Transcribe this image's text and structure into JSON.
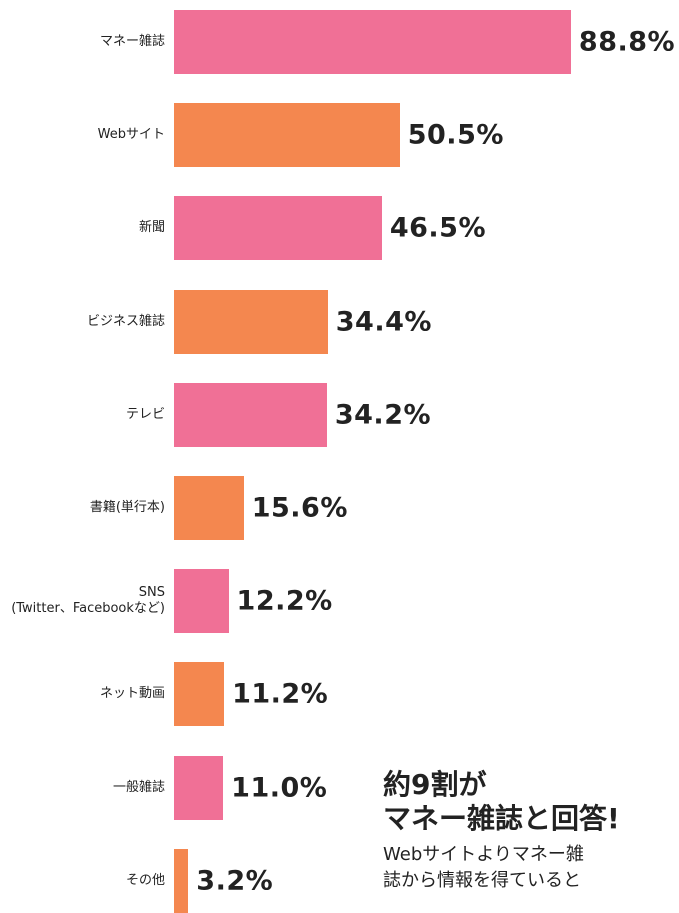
{
  "chart_data": {
    "type": "bar",
    "orientation": "horizontal",
    "categories": [
      "マネー雑誌",
      "Webサイト",
      "新聞",
      "ビジネス雑誌",
      "テレビ",
      "書籍(単行本)",
      "SNS\n(Twitter、Facebookなど)",
      "ネット動画",
      "一般雑誌",
      "その他"
    ],
    "values": [
      88.8,
      50.5,
      46.5,
      34.4,
      34.2,
      15.6,
      12.2,
      11.2,
      11.0,
      3.2
    ],
    "value_labels": [
      "88.8%",
      "50.5%",
      "46.5%",
      "34.4%",
      "34.2%",
      "15.6%",
      "12.2%",
      "11.2%",
      "11.0%",
      "3.2%"
    ],
    "colors": [
      "#f07096",
      "#f4874f",
      "#f07096",
      "#f4874f",
      "#f07096",
      "#f4874f",
      "#f07096",
      "#f4874f",
      "#f07096",
      "#f4874f"
    ],
    "annotation": {
      "title": [
        "約9割が",
        "マネー雑誌と回答!"
      ],
      "text": [
        "Webサイトよりマネー雑",
        "誌から情報を得ていると"
      ]
    }
  }
}
